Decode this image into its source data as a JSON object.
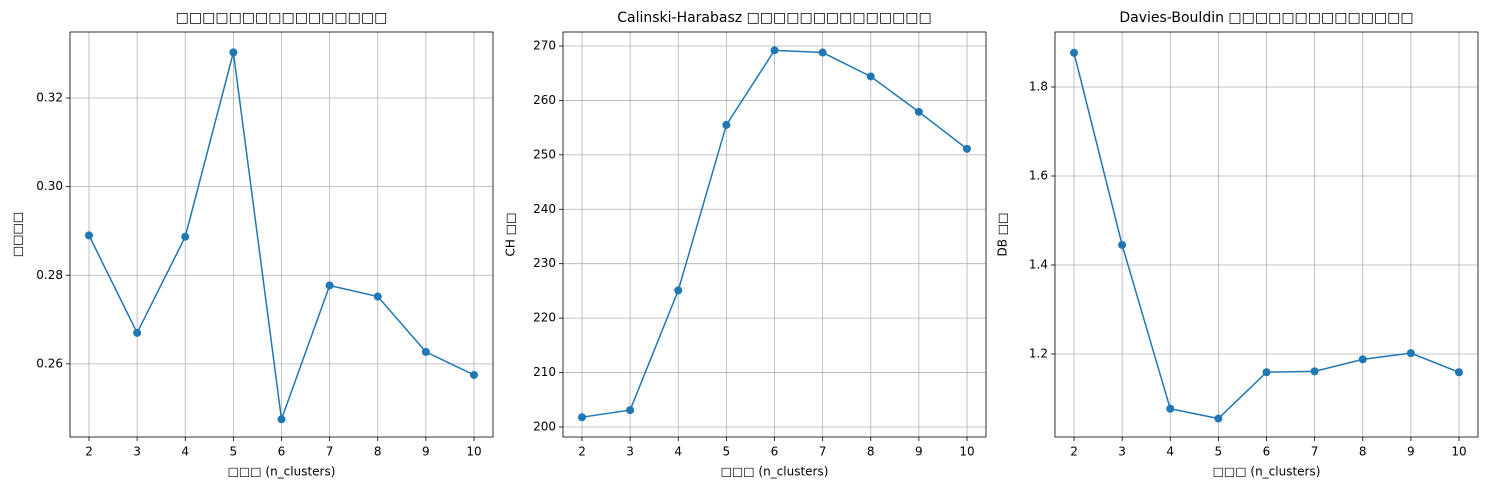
{
  "chart_data": [
    {
      "type": "line",
      "title": "□□□□□□□□□□□□□□□□",
      "xlabel": "□□□ (n_clusters)",
      "ylabel": "□□□□",
      "x": [
        2,
        3,
        4,
        5,
        6,
        7,
        8,
        9,
        10
      ],
      "series": [
        {
          "color": "#1f77b4",
          "values": [
            0.289,
            0.267,
            0.2887,
            0.3303,
            0.2475,
            0.2777,
            0.2752,
            0.2627,
            0.2575
          ]
        }
      ],
      "xlim": [
        1.605,
        10.395
      ],
      "xticks": [
        2,
        3,
        4,
        5,
        6,
        7,
        8,
        9,
        10
      ],
      "ylim": [
        0.2435,
        0.3349
      ],
      "yticks": [
        {
          "value": 0.26,
          "label": "0.26"
        },
        {
          "value": 0.28,
          "label": "0.28"
        },
        {
          "value": 0.3,
          "label": "0.30"
        },
        {
          "value": 0.32,
          "label": "0.32"
        }
      ],
      "grid": true,
      "marker": "circle"
    },
    {
      "type": "line",
      "title": "Calinski-Harabasz □□□□□□□□□□□□□□",
      "xlabel": "□□□ (n_clusters)",
      "ylabel": "CH □□",
      "x": [
        2,
        3,
        4,
        5,
        6,
        7,
        8,
        9,
        10
      ],
      "series": [
        {
          "color": "#1f77b4",
          "values": [
            201.8,
            203.1,
            225.1,
            255.5,
            269.2,
            268.8,
            264.4,
            257.9,
            251.1
          ]
        }
      ],
      "xlim": [
        1.605,
        10.395
      ],
      "xticks": [
        2,
        3,
        4,
        5,
        6,
        7,
        8,
        9,
        10
      ],
      "ylim": [
        198.16,
        272.57
      ],
      "yticks": [
        200,
        210,
        220,
        230,
        240,
        250,
        260,
        270
      ],
      "grid": true,
      "marker": "circle"
    },
    {
      "type": "line",
      "title": "Davies-Bouldin □□□□□□□□□□□□□□",
      "xlabel": "□□□ (n_clusters)",
      "ylabel": "DB □□",
      "x": [
        2,
        3,
        4,
        5,
        6,
        7,
        8,
        9,
        10
      ],
      "series": [
        {
          "color": "#1f77b4",
          "values": [
            1.877,
            1.445,
            1.077,
            1.055,
            1.159,
            1.161,
            1.188,
            1.202,
            1.159
          ]
        }
      ],
      "xlim": [
        1.605,
        10.395
      ],
      "xticks": [
        2,
        3,
        4,
        5,
        6,
        7,
        8,
        9,
        10
      ],
      "ylim": [
        1.0135,
        1.9236
      ],
      "yticks": [
        1.2,
        1.4,
        1.6,
        1.8
      ],
      "grid": true,
      "marker": "circle"
    }
  ]
}
